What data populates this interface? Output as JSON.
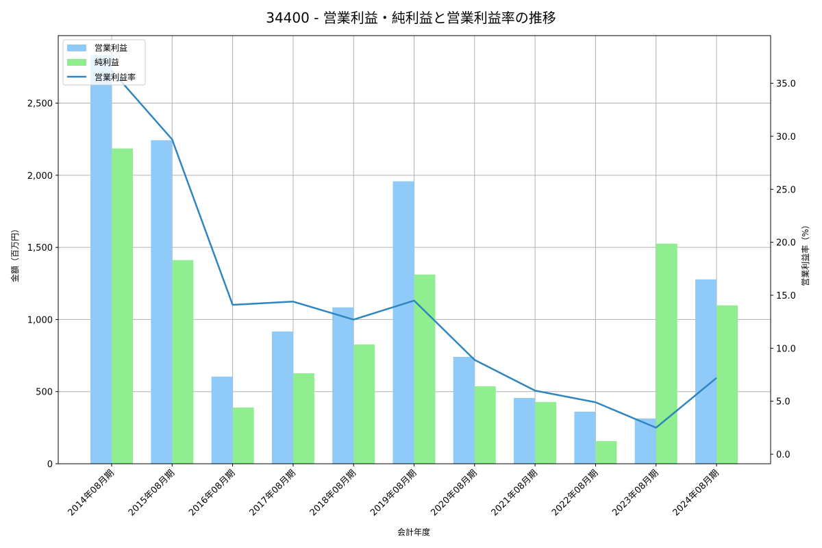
{
  "chart_data": {
    "type": "bar",
    "title": "34400 - 営業利益・純利益と営業利益率の推移",
    "xlabel": "会計年度",
    "ylabel": "金額（百万円）",
    "y2label": "営業利益率（%）",
    "categories": [
      "2014年08月期",
      "2015年08月期",
      "2016年08月期",
      "2017年08月期",
      "2018年08月期",
      "2019年08月期",
      "2020年08月期",
      "2021年08月期",
      "2022年08月期",
      "2023年08月期",
      "2024年08月期"
    ],
    "series": [
      {
        "name": "営業利益",
        "type": "bar",
        "axis": "left",
        "color": "#90caf9",
        "values": [
          2832,
          2243,
          604,
          917,
          1084,
          1958,
          741,
          456,
          361,
          314,
          1278
        ]
      },
      {
        "name": "純利益",
        "type": "bar",
        "axis": "left",
        "color": "#90ee90",
        "values": [
          2186,
          1412,
          390,
          627,
          827,
          1312,
          537,
          428,
          157,
          1526,
          1098
        ]
      },
      {
        "name": "営業利益率",
        "type": "line",
        "axis": "right",
        "color": "#2e86c1",
        "values": [
          36.2,
          29.7,
          14.1,
          14.4,
          12.7,
          14.5,
          8.9,
          6.0,
          4.9,
          2.5,
          7.2
        ]
      }
    ],
    "ylim": [
      0,
      2968
    ],
    "y2lim": [
      -0.9,
      39.5
    ],
    "yticks": [
      0,
      500,
      1000,
      1500,
      2000,
      2500
    ],
    "ytick_labels": [
      "0",
      "500",
      "1,000",
      "1,500",
      "2,000",
      "2,500"
    ],
    "y2ticks": [
      0,
      5,
      10,
      15,
      20,
      25,
      30,
      35
    ],
    "y2tick_labels": [
      "0.0",
      "5.0",
      "10.0",
      "15.0",
      "20.0",
      "25.0",
      "30.0",
      "35.0"
    ],
    "grid": true,
    "legend_position": "upper left"
  }
}
